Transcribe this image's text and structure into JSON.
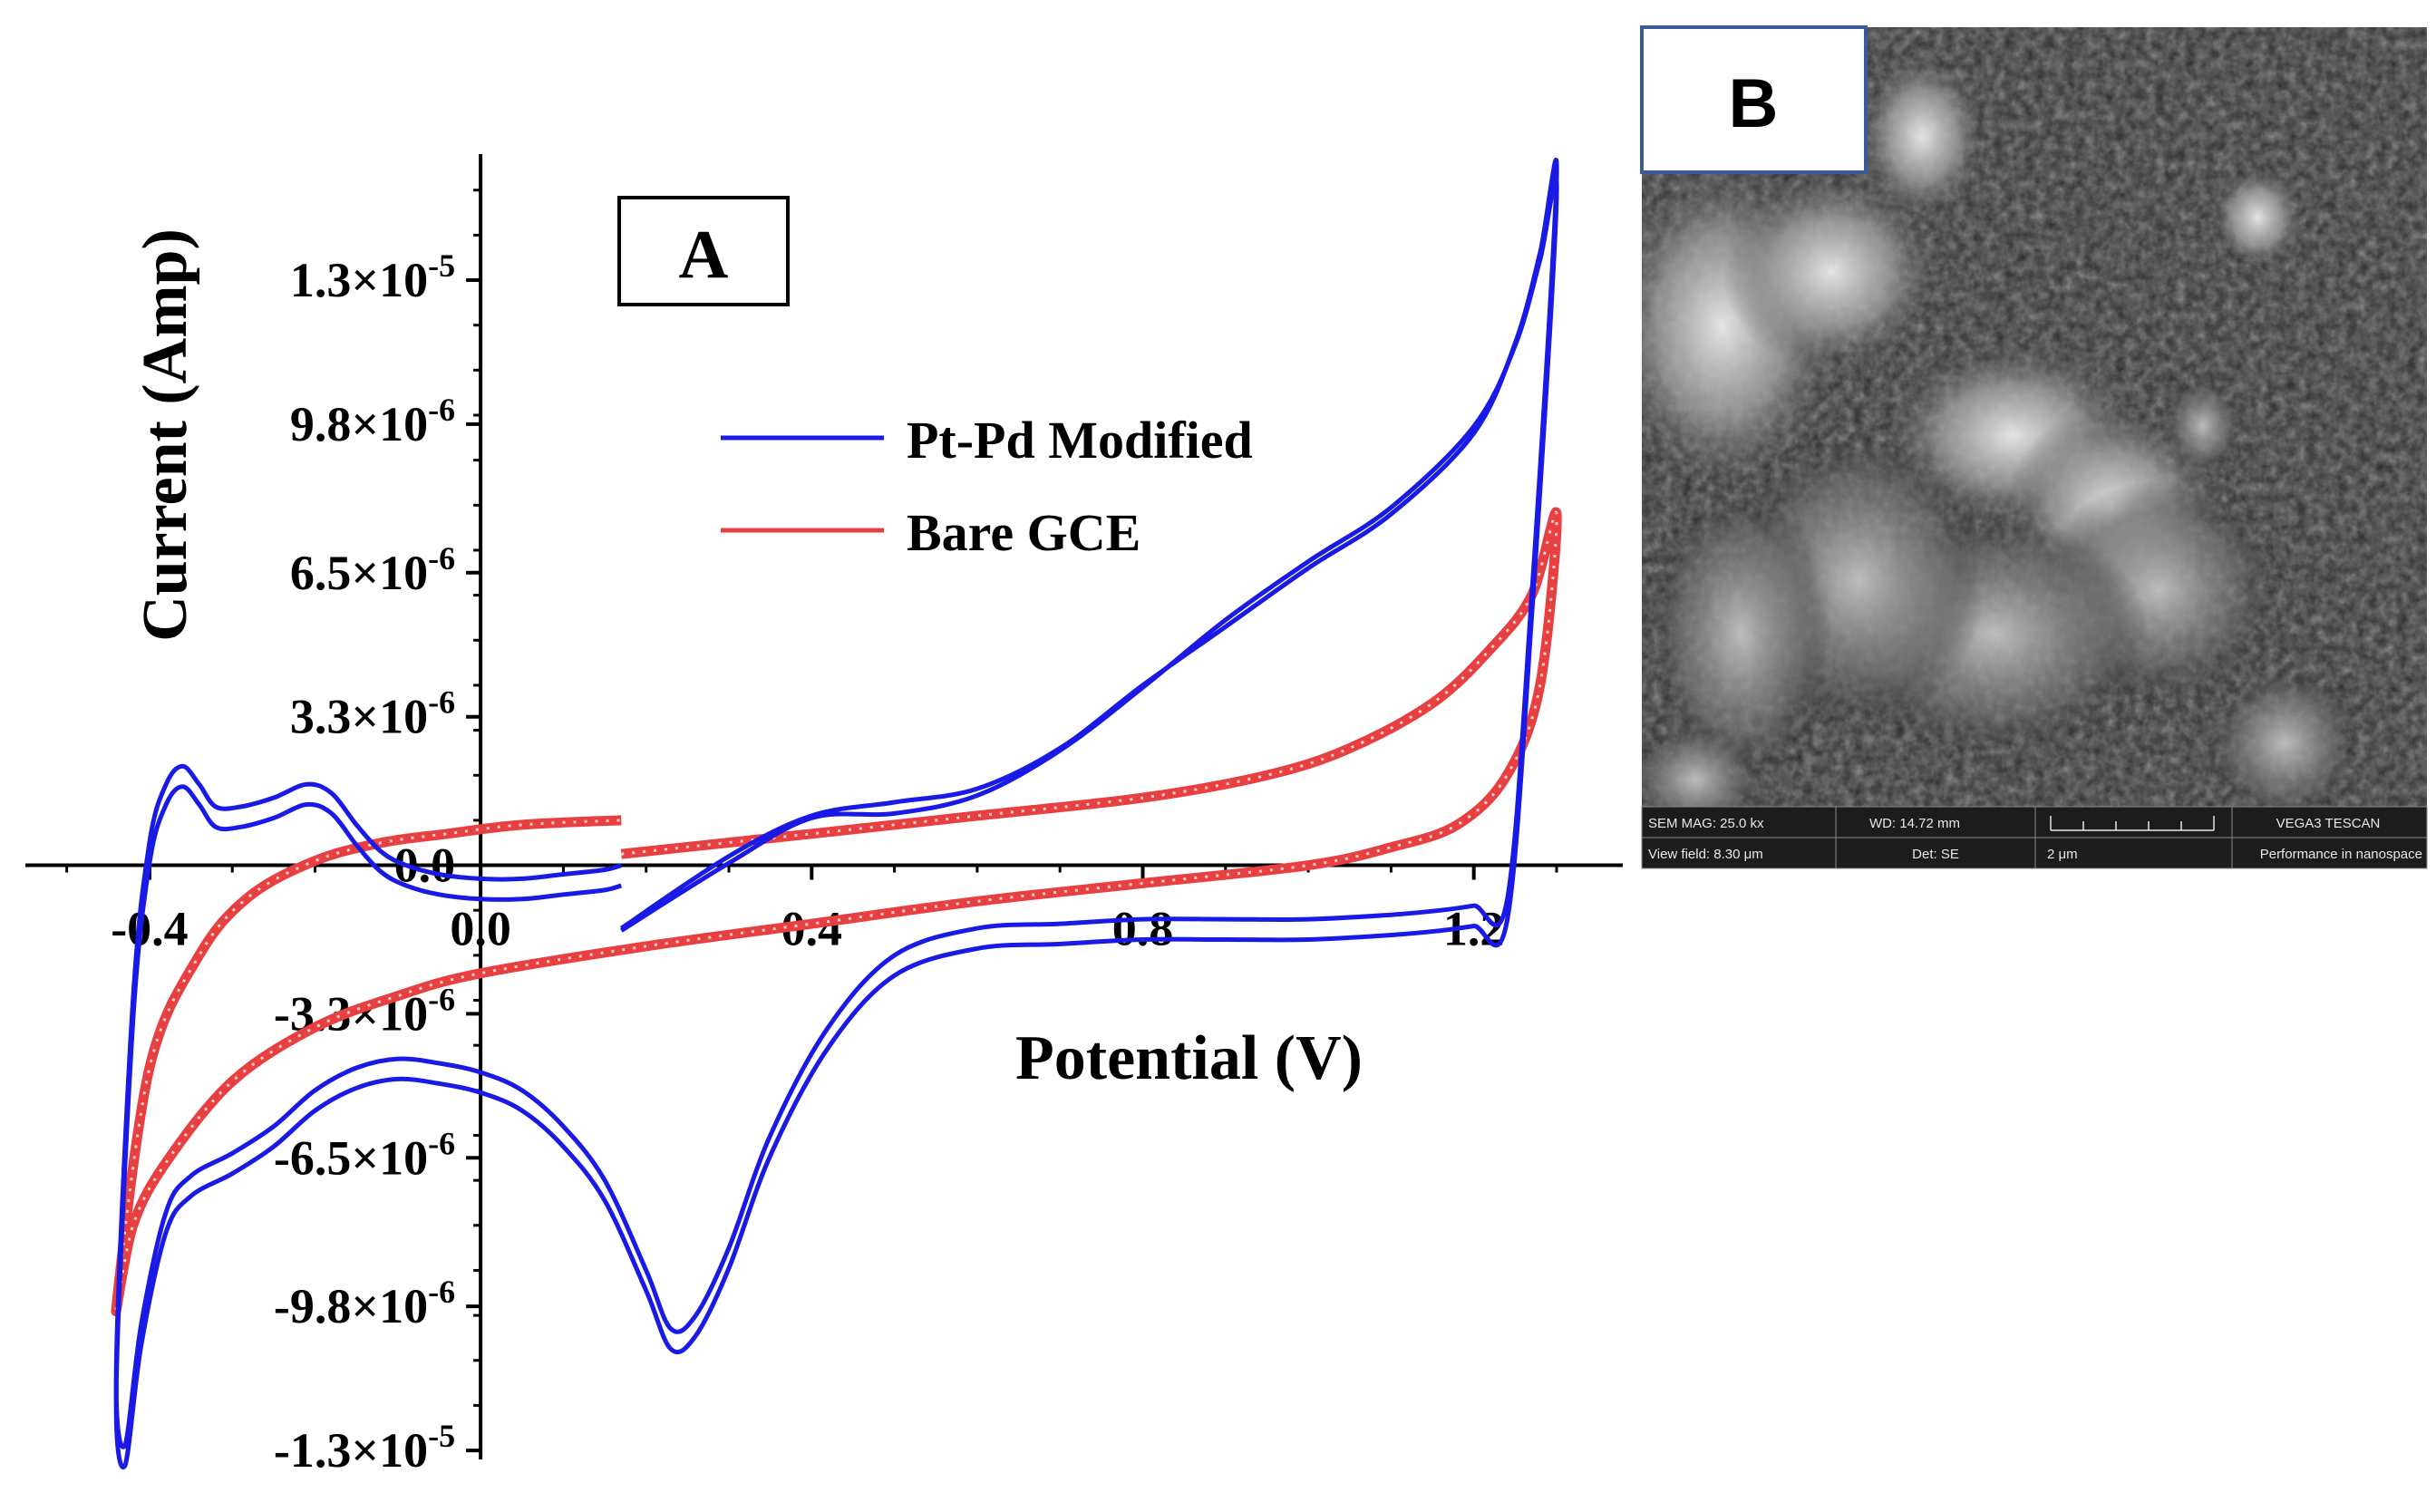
{
  "chart_data": [
    {
      "panel": "A",
      "type": "line",
      "xlabel": "Potential (V)",
      "ylabel": "Current (Amp)",
      "xlim": [
        -0.55,
        1.38
      ],
      "ylim": [
        -1.32e-05,
        1.58e-05
      ],
      "x_ticks": [
        -0.4,
        0.0,
        0.4,
        0.8,
        1.2
      ],
      "x_tick_labels": [
        "-0.4",
        "0.0",
        "0.4",
        "0.8",
        "1.2"
      ],
      "y_ticks": [
        1.3e-05,
        9.8e-06,
        6.5e-06,
        3.3e-06,
        0.0,
        -3.3e-06,
        -6.5e-06,
        -9.8e-06,
        -1.3e-05
      ],
      "y_tick_labels": [
        {
          "mantissa": "1.3×10",
          "exp": "-5"
        },
        {
          "mantissa": "9.8×10",
          "exp": "-6"
        },
        {
          "mantissa": "6.5×10",
          "exp": "-6"
        },
        {
          "mantissa": "3.3×10",
          "exp": "-6"
        },
        {
          "mantissa": "0.0",
          "exp": ""
        },
        {
          "mantissa": "-3.3×10",
          "exp": "-6"
        },
        {
          "mantissa": "-6.5×10",
          "exp": "-6"
        },
        {
          "mantissa": "-9.8×10",
          "exp": "-6"
        },
        {
          "mantissa": "-1.3×10",
          "exp": "-5"
        }
      ],
      "legend": {
        "position": "top-center"
      },
      "panel_label": "A",
      "series": [
        {
          "name": "Pt-Pd Modified",
          "color": "#1a1ae6",
          "style": "double-line",
          "cycles": [
            {
              "offset_x": 0.0,
              "offset_y": 0.0,
              "x": [
                0.17,
                0.3,
                0.4,
                0.5,
                0.6,
                0.7,
                0.8,
                0.9,
                1.0,
                1.1,
                1.2,
                1.25,
                1.28,
                1.3,
                1.27,
                1.24,
                1.2,
                1.16,
                1.1,
                1.0,
                0.9,
                0.8,
                0.7,
                0.6,
                0.5,
                0.42,
                0.35,
                0.3,
                0.26,
                0.23,
                0.2,
                0.15,
                0.1,
                0.05,
                0.0,
                -0.05,
                -0.1,
                -0.15,
                -0.2,
                -0.25,
                -0.3,
                -0.35,
                -0.38,
                -0.41,
                -0.43,
                -0.44,
                -0.42,
                -0.4,
                -0.38,
                -0.36,
                -0.34,
                -0.32,
                -0.29,
                -0.25,
                -0.21,
                -0.18,
                -0.15,
                -0.12,
                -0.09,
                -0.05,
                0.0,
                0.05,
                0.1,
                0.15,
                0.17
              ],
              "y": [
                -1.4e-06,
                2e-07,
                1.1e-06,
                1.4e-06,
                1.7e-06,
                2.6e-06,
                4e-06,
                5.3e-06,
                6.6e-06,
                7.8e-06,
                9.6e-06,
                1.16e-05,
                1.36e-05,
                1.53e-05,
                6e-06,
                -8e-07,
                -9e-07,
                -1e-06,
                -1.1e-06,
                -1.2e-06,
                -1.2e-06,
                -1.2e-06,
                -1.3e-06,
                -1.4e-06,
                -2e-06,
                -3.6e-06,
                -6e-06,
                -8.5e-06,
                -1e-05,
                -1.03e-05,
                -9e-06,
                -7e-06,
                -5.8e-06,
                -5e-06,
                -4.6e-06,
                -4.4e-06,
                -4.3e-06,
                -4.5e-06,
                -5e-06,
                -5.8e-06,
                -6.4e-06,
                -6.9e-06,
                -7.7e-06,
                -1.02e-05,
                -1.29e-05,
                -1.1e-05,
                -3e-06,
                5e-07,
                1.8e-06,
                2.2e-06,
                1.8e-06,
                1.3e-06,
                1.3e-06,
                1.5e-06,
                1.8e-06,
                1.6e-06,
                9e-07,
                3e-07,
                0.0,
                -2e-07,
                -3e-07,
                -3e-07,
                -2e-07,
                -1e-07,
                0.0
              ]
            },
            {
              "offset_x": 0.0,
              "offset_y": -4.5e-07,
              "x": [
                0.17,
                0.3,
                0.4,
                0.5,
                0.6,
                0.7,
                0.8,
                0.9,
                1.0,
                1.1,
                1.2,
                1.25,
                1.28,
                1.3,
                1.27,
                1.24,
                1.2,
                1.16,
                1.1,
                1.0,
                0.9,
                0.8,
                0.7,
                0.6,
                0.5,
                0.42,
                0.35,
                0.3,
                0.26,
                0.23,
                0.2,
                0.15,
                0.1,
                0.05,
                0.0,
                -0.05,
                -0.1,
                -0.15,
                -0.2,
                -0.25,
                -0.3,
                -0.35,
                -0.38,
                -0.41,
                -0.43,
                -0.44,
                -0.42,
                -0.4,
                -0.38,
                -0.36,
                -0.34,
                -0.32,
                -0.29,
                -0.25,
                -0.21,
                -0.18,
                -0.15,
                -0.12,
                -0.09,
                -0.05,
                0.0,
                0.05,
                0.1,
                0.15,
                0.17
              ],
              "y": [
                -1e-06,
                5e-07,
                1.5e-06,
                1.6e-06,
                2e-06,
                3e-06,
                4.4e-06,
                5.9e-06,
                7.2e-06,
                8.4e-06,
                1.02e-05,
                1.2e-05,
                1.39e-05,
                1.53e-05,
                6e-06,
                -8e-07,
                -9e-07,
                -1e-06,
                -1.1e-06,
                -1.2e-06,
                -1.2e-06,
                -1.2e-06,
                -1.3e-06,
                -1.4e-06,
                -2e-06,
                -3.6e-06,
                -6e-06,
                -8.5e-06,
                -1e-05,
                -1.03e-05,
                -9e-06,
                -7e-06,
                -5.8e-06,
                -5e-06,
                -4.6e-06,
                -4.4e-06,
                -4.3e-06,
                -4.5e-06,
                -5e-06,
                -5.8e-06,
                -6.4e-06,
                -6.9e-06,
                -7.7e-06,
                -1.02e-05,
                -1.29e-05,
                -1.1e-05,
                -3e-06,
                5e-07,
                1.8e-06,
                2.2e-06,
                1.8e-06,
                1.3e-06,
                1.3e-06,
                1.5e-06,
                1.8e-06,
                1.6e-06,
                9e-07,
                3e-07,
                0.0,
                -2e-07,
                -3e-07,
                -3e-07,
                -2e-07,
                -1e-07,
                0.0
              ]
            }
          ]
        },
        {
          "name": "Bare GCE",
          "color": "#e84040",
          "style": "dotted-double-line",
          "cycles": [
            {
              "offset_x": 0.0,
              "offset_y": 0.0,
              "x": [
                0.17,
                0.4,
                0.6,
                0.8,
                0.95,
                1.05,
                1.15,
                1.22,
                1.27,
                1.3,
                1.28,
                1.24,
                1.18,
                1.1,
                1.0,
                0.8,
                0.6,
                0.4,
                0.2,
                0.0,
                -0.1,
                -0.2,
                -0.3,
                -0.38,
                -0.42,
                -0.44,
                -0.4,
                -0.34,
                -0.28,
                -0.2,
                -0.12,
                -0.04,
                0.05,
                0.17
              ],
              "y": [
                2.5e-07,
                7e-07,
                1.1e-06,
                1.5e-06,
                2e-06,
                2.6e-06,
                3.6e-06,
                4.8e-06,
                6e-06,
                7.8e-06,
                4e-06,
                2e-06,
                9e-07,
                4e-07,
                0.0,
                -4e-07,
                -8e-07,
                -1.3e-06,
                -1.8e-06,
                -2.4e-06,
                -2.9e-06,
                -3.6e-06,
                -4.8e-06,
                -6.6e-06,
                -8e-06,
                -9.8e-06,
                -4.5e-06,
                -2e-06,
                -7e-07,
                1e-07,
                5e-07,
                7e-07,
                9e-07,
                1e-06
              ]
            }
          ]
        }
      ]
    },
    {
      "panel": "B",
      "type": "image",
      "panel_label": "B",
      "description_bar": {
        "sem_mag": "SEM MAG: 25.0 kx",
        "wd": "WD: 14.72 mm",
        "vega": "VEGA3 TESCAN",
        "view_field": "View field: 8.30 μm",
        "det": "Det: SE",
        "scale": "2 μm",
        "performance": "Performance in nanospace"
      }
    }
  ]
}
